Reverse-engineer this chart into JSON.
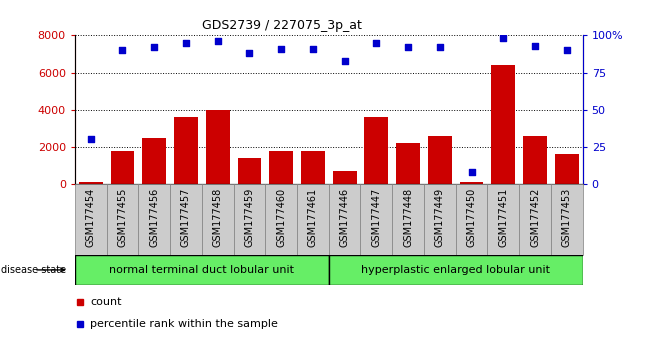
{
  "title": "GDS2739 / 227075_3p_at",
  "samples": [
    "GSM177454",
    "GSM177455",
    "GSM177456",
    "GSM177457",
    "GSM177458",
    "GSM177459",
    "GSM177460",
    "GSM177461",
    "GSM177446",
    "GSM177447",
    "GSM177448",
    "GSM177449",
    "GSM177450",
    "GSM177451",
    "GSM177452",
    "GSM177453"
  ],
  "counts": [
    100,
    1800,
    2500,
    3600,
    4000,
    1400,
    1800,
    1800,
    700,
    3600,
    2200,
    2600,
    100,
    6400,
    2600,
    1600
  ],
  "percentiles": [
    30,
    90,
    92,
    95,
    96,
    88,
    91,
    91,
    83,
    95,
    92,
    92,
    8,
    98,
    93,
    90
  ],
  "group1_label": "normal terminal duct lobular unit",
  "group2_label": "hyperplastic enlarged lobular unit",
  "group1_count": 8,
  "group2_count": 8,
  "bar_color": "#cc0000",
  "dot_color": "#0000cc",
  "ylim_left": [
    0,
    8000
  ],
  "ylim_right": [
    0,
    100
  ],
  "yticks_left": [
    0,
    2000,
    4000,
    6000,
    8000
  ],
  "yticks_right": [
    0,
    25,
    50,
    75,
    100
  ],
  "yticklabels_right": [
    "0",
    "25",
    "50",
    "75",
    "100%"
  ],
  "group1_color": "#66ee66",
  "group2_color": "#66ee66",
  "xtick_bg_color": "#cccccc",
  "bg_color": "#ffffff",
  "legend_count_label": "count",
  "legend_pct_label": "percentile rank within the sample"
}
